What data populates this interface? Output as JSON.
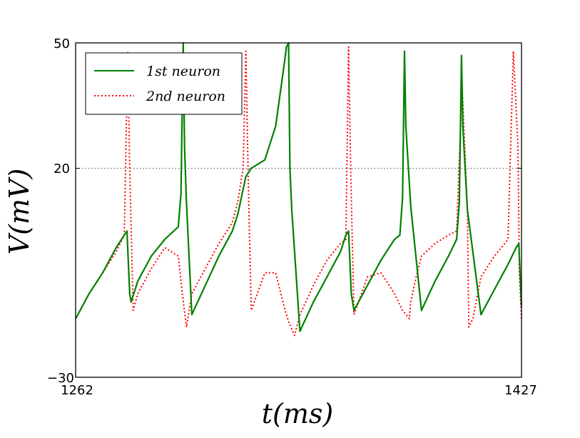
{
  "chart_data": {
    "type": "line",
    "xlabel": "t(ms)",
    "ylabel": "V(mV)",
    "xlim": [
      1262,
      1427
    ],
    "ylim": [
      -30,
      50
    ],
    "x_ticks": [
      1262,
      1427
    ],
    "x_tick_labels": [
      "1262",
      "1427"
    ],
    "y_ticks": [
      -30,
      20,
      50
    ],
    "y_tick_labels": [
      "−30",
      "20",
      "50"
    ],
    "reference_line": 20,
    "legend_position": "top-left",
    "series": [
      {
        "name": "1st neuron",
        "style": "solid",
        "color": "#008000",
        "x": [
          1262,
          1267,
          1272,
          1277,
          1280,
          1281,
          1282,
          1282.5,
          1285,
          1290,
          1295,
          1300,
          1301,
          1301.8,
          1302.3,
          1303,
          1305,
          1310,
          1315,
          1320,
          1322,
          1323,
          1324,
          1325,
          1327,
          1332,
          1336,
          1339,
          1340,
          1340.8,
          1341.3,
          1342,
          1345,
          1350,
          1355,
          1360,
          1362,
          1363,
          1364,
          1365,
          1370,
          1375,
          1380,
          1382,
          1383,
          1383.7,
          1384.2,
          1386,
          1390,
          1395,
          1400,
          1403,
          1404,
          1404.8,
          1405.3,
          1407,
          1412,
          1417,
          1422,
          1425,
          1426,
          1427
        ],
        "y": [
          -16,
          -10,
          -5,
          1,
          4,
          5,
          -10,
          -12,
          -7,
          -1,
          3,
          6,
          14,
          50,
          25,
          12,
          -15,
          -8,
          -1,
          5,
          9,
          12,
          15,
          18,
          20,
          22,
          30,
          44,
          49,
          50,
          20,
          10,
          -19,
          -12,
          -6,
          0,
          4,
          5,
          -10,
          -14,
          -8,
          -2,
          3,
          4,
          13,
          48,
          30,
          11,
          -14,
          -7,
          -1,
          3,
          12,
          47,
          30,
          10,
          -15,
          -9,
          -3,
          1,
          2,
          -13
        ]
      },
      {
        "name": "2nd neuron",
        "style": "dotted",
        "color": "#ff0000",
        "x": [
          1262,
          1267,
          1272,
          1277,
          1280,
          1281.3,
          1282,
          1283.3,
          1285,
          1290,
          1295,
          1300,
          1301.5,
          1303,
          1305,
          1310,
          1315,
          1320,
          1322,
          1324,
          1325,
          1325.8,
          1326.3,
          1327,
          1332,
          1336,
          1339.5,
          1341,
          1343,
          1345,
          1350,
          1355,
          1360,
          1362,
          1363,
          1363.8,
          1364.3,
          1365,
          1370,
          1375,
          1380,
          1383,
          1385.5,
          1386,
          1388,
          1390,
          1395,
          1400,
          1403,
          1405,
          1407,
          1407.5,
          1409,
          1412,
          1417,
          1422,
          1424,
          1425.7,
          1426.2,
          1427
        ],
        "y": [
          -16,
          -10,
          -5,
          0,
          4,
          48,
          20,
          -14,
          -10,
          -4,
          1,
          -1,
          -10,
          -18,
          -10,
          -4,
          2,
          7,
          12,
          20,
          48,
          20,
          5,
          -14,
          -5,
          -5,
          -14,
          -17,
          -20,
          -15,
          -8,
          -2,
          2,
          3,
          49,
          20,
          5,
          -15,
          -6,
          -5,
          -10,
          -14,
          -16,
          -12,
          -6,
          -1,
          2,
          4,
          5,
          40,
          10,
          -18,
          -16,
          -6,
          -1,
          3,
          48,
          25,
          -5,
          -16
        ]
      }
    ]
  }
}
